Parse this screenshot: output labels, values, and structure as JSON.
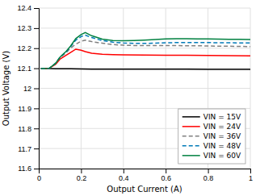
{
  "chart_data": {
    "type": "line",
    "xlabel": "Output Current (A)",
    "ylabel": "Output Voltage (V)",
    "xlim": [
      0,
      1.0
    ],
    "ylim": [
      11.6,
      12.4
    ],
    "xticks": [
      0,
      0.2,
      0.4,
      0.6,
      0.8,
      1.0
    ],
    "yticks": [
      11.6,
      11.7,
      11.8,
      11.9,
      12.0,
      12.1,
      12.2,
      12.3,
      12.4
    ],
    "grid": true,
    "legend": "lower right",
    "series": [
      {
        "name": "VIN = 15V",
        "color": "#000000",
        "line_style": "solid",
        "x": [
          0.01,
          0.03,
          0.05,
          0.08,
          0.1,
          0.15,
          0.2,
          0.25,
          0.3,
          0.4,
          0.5,
          0.6,
          0.7,
          0.8,
          0.9,
          1.0
        ],
        "values": [
          12.098,
          12.098,
          12.098,
          12.097,
          12.097,
          12.097,
          12.096,
          12.095,
          12.095,
          12.095,
          12.095,
          12.095,
          12.095,
          12.094,
          12.094,
          12.094
        ]
      },
      {
        "name": "VIN = 24V",
        "color": "#ff0000",
        "line_style": "solid",
        "x": [
          0.01,
          0.03,
          0.05,
          0.08,
          0.1,
          0.13,
          0.15,
          0.175,
          0.2,
          0.22,
          0.25,
          0.3,
          0.35,
          0.4,
          0.5,
          0.6,
          0.7,
          0.8,
          0.9,
          1.0
        ],
        "values": [
          12.098,
          12.098,
          12.1,
          12.12,
          12.145,
          12.165,
          12.178,
          12.195,
          12.19,
          12.183,
          12.175,
          12.17,
          12.168,
          12.167,
          12.166,
          12.165,
          12.165,
          12.164,
          12.163,
          12.162
        ]
      },
      {
        "name": "VIN = 36V",
        "color": "#808080",
        "line_style": "dashed",
        "x": [
          0.01,
          0.03,
          0.05,
          0.08,
          0.1,
          0.13,
          0.15,
          0.175,
          0.2,
          0.22,
          0.25,
          0.3,
          0.35,
          0.4,
          0.45,
          0.5,
          0.55,
          0.6,
          0.65,
          0.7,
          0.75,
          0.8,
          0.85,
          0.9,
          0.95,
          1.0
        ],
        "values": [
          12.098,
          12.098,
          12.1,
          12.125,
          12.153,
          12.178,
          12.2,
          12.22,
          12.235,
          12.24,
          12.233,
          12.225,
          12.218,
          12.215,
          12.213,
          12.213,
          12.213,
          12.213,
          12.213,
          12.212,
          12.212,
          12.211,
          12.21,
          12.21,
          12.209,
          12.208
        ]
      },
      {
        "name": "VIN = 48V",
        "color": "#007ab8",
        "line_style": "dashed",
        "x": [
          0.01,
          0.03,
          0.05,
          0.08,
          0.1,
          0.13,
          0.15,
          0.175,
          0.2,
          0.22,
          0.25,
          0.3,
          0.35,
          0.4,
          0.45,
          0.5,
          0.55,
          0.6,
          0.65,
          0.7,
          0.75,
          0.8,
          0.85,
          0.9,
          0.95,
          1.0
        ],
        "values": [
          12.098,
          12.098,
          12.1,
          12.125,
          12.155,
          12.182,
          12.207,
          12.24,
          12.258,
          12.265,
          12.253,
          12.238,
          12.23,
          12.226,
          12.224,
          12.224,
          12.225,
          12.227,
          12.228,
          12.228,
          12.228,
          12.228,
          12.227,
          12.227,
          12.226,
          12.226
        ]
      },
      {
        "name": "VIN = 60V",
        "color": "#008040",
        "line_style": "solid",
        "x": [
          0.01,
          0.03,
          0.05,
          0.08,
          0.1,
          0.13,
          0.15,
          0.175,
          0.2,
          0.22,
          0.25,
          0.3,
          0.35,
          0.4,
          0.45,
          0.5,
          0.55,
          0.6,
          0.65,
          0.7,
          0.75,
          0.8,
          0.85,
          0.9,
          0.95,
          1.0
        ],
        "values": [
          12.098,
          12.098,
          12.1,
          12.125,
          12.155,
          12.185,
          12.21,
          12.248,
          12.268,
          12.278,
          12.262,
          12.245,
          12.238,
          12.237,
          12.238,
          12.24,
          12.243,
          12.246,
          12.247,
          12.247,
          12.246,
          12.246,
          12.245,
          12.244,
          12.244,
          12.243
        ]
      }
    ]
  }
}
